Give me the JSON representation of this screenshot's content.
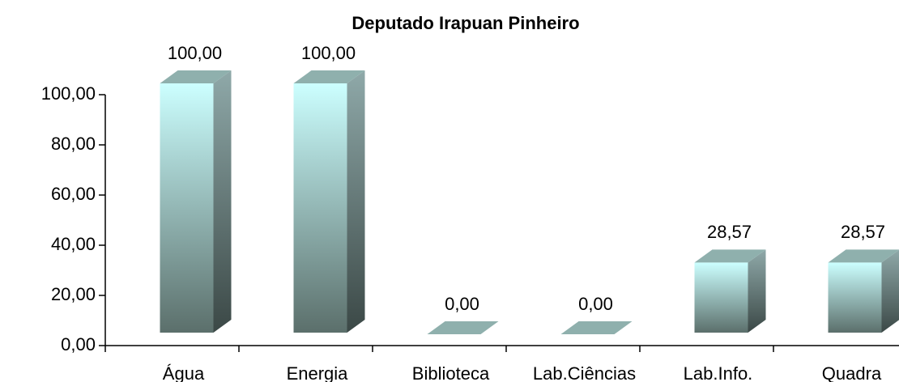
{
  "chart_data": {
    "type": "bar3d",
    "title": "Deputado Irapuan Pinheiro",
    "categories": [
      "Água",
      "Energia",
      "Biblioteca",
      "Lab.Ciências",
      "Lab.Info.",
      "Quadra"
    ],
    "values": [
      100,
      100,
      0,
      0,
      28.57,
      28.57
    ],
    "value_labels": [
      "100,00",
      "100,00",
      "0,00",
      "0,00",
      "28,57",
      "28,57"
    ],
    "ylim": [
      0,
      100
    ],
    "yticks": [
      {
        "value": 0,
        "label": "0,00"
      },
      {
        "value": 20,
        "label": "20,00"
      },
      {
        "value": 40,
        "label": "40,00"
      },
      {
        "value": 60,
        "label": "60,00"
      },
      {
        "value": 80,
        "label": "80,00"
      },
      {
        "value": 100,
        "label": "100,00"
      }
    ],
    "grid": false
  }
}
